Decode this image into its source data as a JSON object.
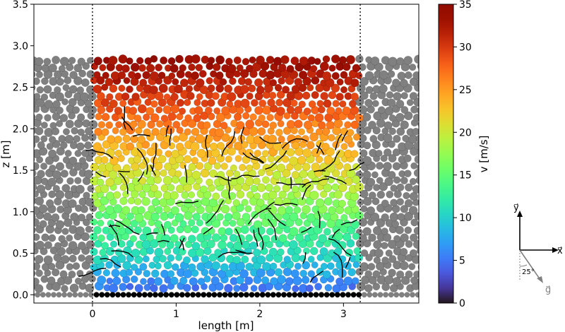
{
  "chart_data": {
    "type": "scatter",
    "xlabel": "length [m]",
    "ylabel": "z [m]",
    "xlim": [
      -0.7,
      3.9
    ],
    "ylim": [
      -0.1,
      3.5
    ],
    "xticks": [
      0,
      1,
      2,
      3
    ],
    "yticks": [
      0.0,
      0.5,
      1.0,
      1.5,
      2.0,
      2.5,
      3.0,
      3.5
    ],
    "tick_labels_x": [
      "0",
      "1",
      "2",
      "3"
    ],
    "tick_labels_y": [
      "0.0",
      "0.5",
      "1.0",
      "1.5",
      "2.0",
      "2.5",
      "3.0",
      "3.5"
    ],
    "domain_x": [
      0.0,
      3.2
    ],
    "boundary_lines_x": [
      0.0,
      3.2
    ],
    "bed_height": 2.9,
    "bed_bottom": 0.0,
    "velocity_profile": {
      "z": [
        0.0,
        0.5,
        1.0,
        1.5,
        2.0,
        2.5,
        2.9
      ],
      "v": [
        4,
        11,
        16,
        21,
        26,
        31,
        34
      ]
    },
    "colorbar": {
      "label": "v [m/s]",
      "min": 0,
      "max": 35,
      "ticks": [
        0,
        5,
        10,
        15,
        20,
        25,
        30,
        35
      ],
      "tick_labels": [
        "0",
        "5",
        "10",
        "15",
        "20",
        "25",
        "30",
        "35"
      ],
      "colormap": "turbo"
    },
    "periodic_image_color": "#808080",
    "fixed_wall_color": "#000000",
    "force_chain_color": "#000000"
  },
  "axes_glyph": {
    "x_label": "x⃗",
    "y_label": "y⃗",
    "g_label": "g⃗",
    "angle_label": "25°",
    "angle_deg": 25,
    "gravity_color": "#808080"
  }
}
